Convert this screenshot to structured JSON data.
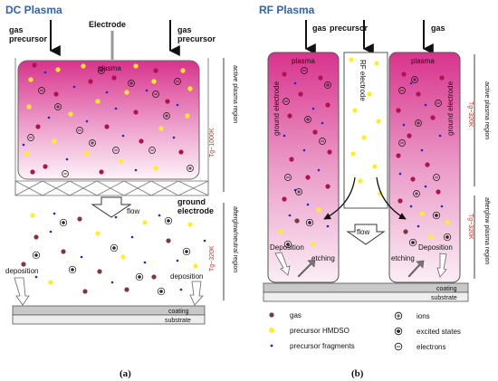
{
  "panel_a": {
    "title": "DC Plasma",
    "top_left_label_1": "gas",
    "top_left_label_2": "precursor",
    "electrode_label": "Electrode",
    "top_right_label_1": "gas",
    "top_right_label_2": "precursor",
    "plasma_label": "plasma",
    "flow_label": "flow",
    "ground_electrode_1": "ground",
    "ground_electrode_2": "electrode",
    "deposition_left": "deposition",
    "deposition_right": "deposition",
    "coating": "coating",
    "substrate": "substrate",
    "temp_upper": "Tg~1000K",
    "temp_lower": "Tg~320K",
    "region_upper": "active plasma region",
    "region_lower": "afterglow/neutral region",
    "caption": "(a)"
  },
  "panel_b": {
    "title": "RF Plasma",
    "gas_left": "gas",
    "precursor": "precursor",
    "gas_right": "gas",
    "plasma_left": "plasma",
    "plasma_right": "plasma",
    "ground_electrode_left": "ground electrode",
    "ground_electrode_right": "ground electrode",
    "rf_electrode": "RF electrode",
    "flow_label": "flow",
    "deposition_left": "Deposition",
    "etching_left": "etching",
    "etching_right": "etching",
    "deposition_right": "Deposition",
    "coating": "coating",
    "substrate": "substrate",
    "temp_upper": "Tg~320K",
    "temp_lower": "Tg~320K",
    "region_upper": "active plasma region",
    "region_lower": "afterglow plasma region",
    "caption": "(b)"
  },
  "legend": {
    "gas": "gas",
    "precursor": "precursor HMDSO",
    "fragments": "precursor fragments",
    "ions": "ions",
    "excited": "excited states",
    "electrons": "electrons"
  },
  "colors": {
    "title": "#2e63b8",
    "gas": "#b0124e",
    "gas_afterglow": "#7a3a44",
    "precursor": "#ffee22",
    "fragments": "#1a2ccc",
    "plasma_top": "#d8338c",
    "temperature": "#c0392b"
  }
}
